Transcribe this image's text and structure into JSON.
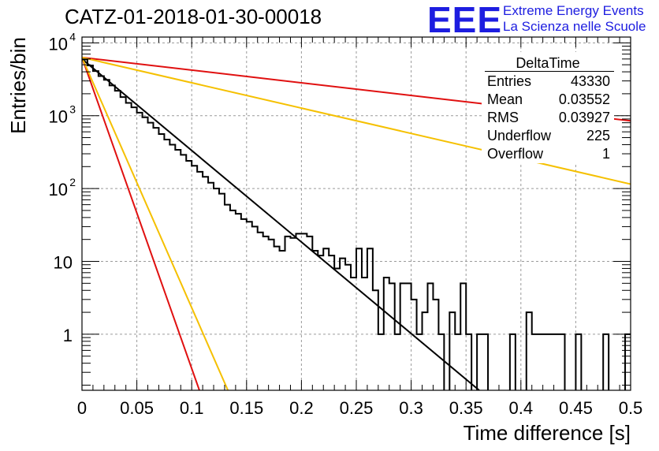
{
  "header": {
    "title": "CATZ-01-2018-01-30-00018",
    "logo_text": "EEE",
    "org_line1": "Extreme Energy Events",
    "org_line2": "La Scienza nelle Scuole"
  },
  "stats_box": {
    "title": "DeltaTime",
    "rows": [
      {
        "key": "Entries",
        "value": "43330"
      },
      {
        "key": "Mean",
        "value": "0.03552"
      },
      {
        "key": "RMS",
        "value": "0.03927"
      },
      {
        "key": "Underflow",
        "value": "225"
      },
      {
        "key": "Overflow",
        "value": "1"
      }
    ]
  },
  "chart_data": {
    "type": "line",
    "title": "CATZ-01-2018-01-30-00018",
    "xlabel": "Time difference [s]",
    "ylabel": "Entries/bin",
    "xlim": [
      0,
      0.5
    ],
    "ylim": [
      0.17,
      12000
    ],
    "y_scale": "log",
    "grid": true,
    "x_ticks": [
      "0",
      "0.05",
      "0.1",
      "0.15",
      "0.2",
      "0.25",
      "0.3",
      "0.35",
      "0.4",
      "0.45",
      "0.5"
    ],
    "y_ticks": [
      {
        "value": 1,
        "label": "1"
      },
      {
        "value": 10,
        "label": "10"
      },
      {
        "value": 100,
        "label": "10",
        "exp": "2"
      },
      {
        "value": 1000,
        "label": "10",
        "exp": "3"
      },
      {
        "value": 10000,
        "label": "10",
        "exp": "4"
      }
    ],
    "histogram": {
      "color": "#000000",
      "bin_width": 0.005,
      "x_start": 0,
      "counts": [
        5900,
        4900,
        4100,
        3500,
        3100,
        2600,
        2200,
        1800,
        1500,
        1300,
        1100,
        950,
        800,
        680,
        560,
        470,
        400,
        340,
        290,
        240,
        205,
        170,
        145,
        120,
        100,
        85,
        60,
        50,
        45,
        38,
        35,
        30,
        25,
        22,
        20,
        16,
        14,
        22,
        21,
        24,
        24,
        22,
        14,
        12,
        15,
        12,
        8,
        11,
        9,
        6,
        15,
        6,
        15,
        4,
        1,
        6,
        5,
        1,
        5,
        5,
        3,
        1,
        2,
        5,
        3,
        1,
        0,
        2,
        1,
        5,
        1,
        0,
        1,
        1,
        0,
        0,
        0,
        0,
        1,
        0,
        0,
        2,
        1,
        1,
        1,
        1,
        1,
        1,
        0,
        0,
        1,
        0,
        0,
        0,
        0,
        1,
        0,
        0,
        0,
        1
      ]
    },
    "series": [
      {
        "color": "#000000",
        "x": [
          0,
          0.362
        ],
        "y": [
          6000,
          0.17
        ]
      },
      {
        "color": "#e01010",
        "x": [
          0,
          0.5
        ],
        "y": [
          6300,
          850
        ]
      },
      {
        "color": "#e01010",
        "x": [
          0,
          0.107
        ],
        "y": [
          6300,
          0.17
        ]
      },
      {
        "color": "#f5c000",
        "x": [
          0,
          0.5
        ],
        "y": [
          6300,
          115
        ]
      },
      {
        "color": "#f5c000",
        "x": [
          0,
          0.133
        ],
        "y": [
          6300,
          0.17
        ]
      }
    ]
  }
}
